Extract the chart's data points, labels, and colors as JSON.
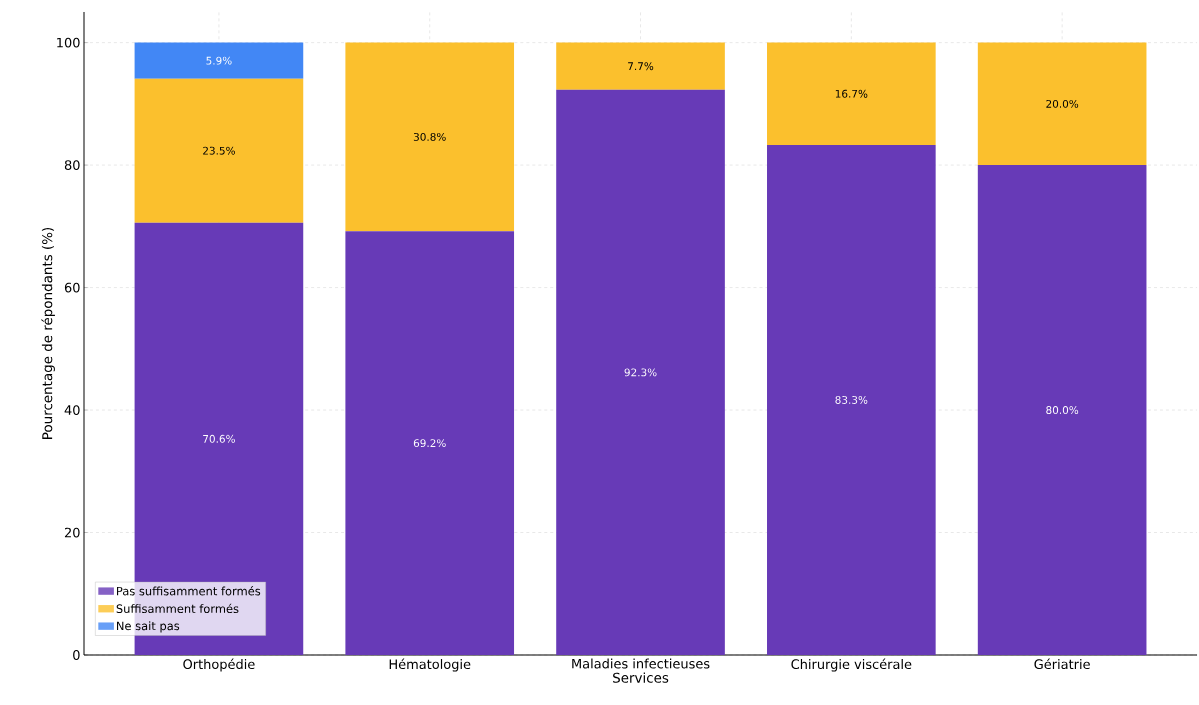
{
  "chart_data": {
    "type": "bar",
    "stacked": true,
    "xlabel": "Services",
    "ylabel": "Pourcentage de répondants (%)",
    "categories": [
      "Orthopédie",
      "Hématologie",
      "Maladies infectieuses",
      "Chirurgie viscérale",
      "Gériatrie"
    ],
    "series": [
      {
        "name": "Pas suffisamment formés",
        "color": "#673ab7",
        "values": [
          70.6,
          69.2,
          92.3,
          83.3,
          80.0
        ],
        "value_labels": [
          "70.6%",
          "69.2%",
          "92.3%",
          "83.3%",
          "80.0%"
        ]
      },
      {
        "name": "Suffisamment formés",
        "color": "#fbc02d",
        "values": [
          23.5,
          30.8,
          7.7,
          16.7,
          20.0
        ],
        "value_labels": [
          "23.5%",
          "30.8%",
          "7.7%",
          "16.7%",
          "20.0%"
        ]
      },
      {
        "name": "Ne sait pas",
        "color": "#4287f5",
        "values": [
          5.9,
          null,
          null,
          null,
          null
        ],
        "value_labels": [
          "5.9%",
          null,
          null,
          null,
          null
        ]
      }
    ],
    "ylim": [
      0,
      105
    ],
    "yticks": [
      0,
      20,
      40,
      60,
      80,
      100
    ],
    "grid": true,
    "legend": "bottom left"
  }
}
